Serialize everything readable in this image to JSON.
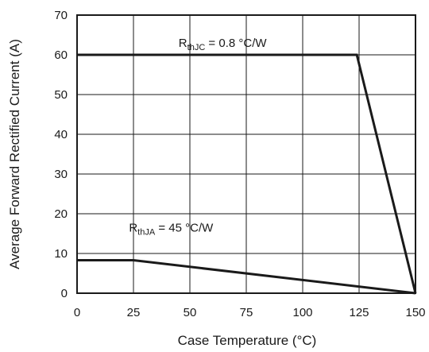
{
  "chart_data": {
    "type": "line",
    "xlabel": "Case Temperature (°C)",
    "ylabel": "Average Forward Rectified Current (A)",
    "xlim": [
      0,
      150
    ],
    "ylim": [
      0,
      70
    ],
    "x_ticks": [
      0,
      25,
      50,
      75,
      100,
      125,
      150
    ],
    "y_ticks": [
      0,
      10,
      20,
      30,
      40,
      50,
      60,
      70
    ],
    "grid": true,
    "series": [
      {
        "x": [
          0,
          124,
          150
        ],
        "y": [
          60,
          60,
          0
        ]
      },
      {
        "x": [
          0,
          25,
          150
        ],
        "y": [
          8.3,
          8.3,
          0
        ]
      }
    ],
    "annotations": [
      {
        "base": "R",
        "sub": "thJC",
        "rest": " = 0.8 °C/W",
        "x": 45,
        "y": 62
      },
      {
        "base": "R",
        "sub": "thJA",
        "rest": " = 45 °C/W",
        "x": 23,
        "y": 15.5
      }
    ]
  }
}
